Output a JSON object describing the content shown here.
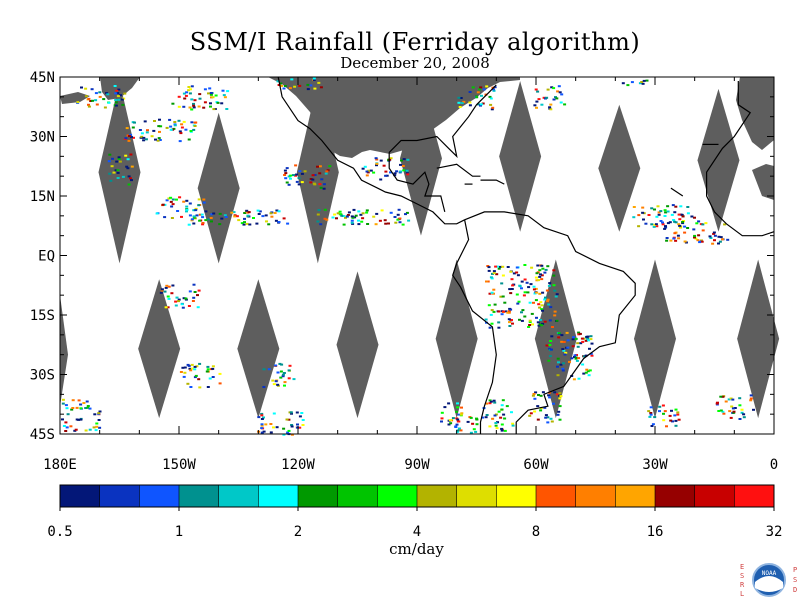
{
  "title": "SSM/I Rainfall (Ferriday algorithm)",
  "date": "December 20, 2008",
  "lat_labels": [
    "45N",
    "30N",
    "15N",
    "EQ",
    "15S",
    "30S",
    "45S"
  ],
  "lon_labels": [
    "180E",
    "150W",
    "120W",
    "90W",
    "60W",
    "30W",
    "0"
  ],
  "colorbar": {
    "colors": [
      "#031778",
      "#0a33c0",
      "#0f55ff",
      "#00918f",
      "#00c8c8",
      "#00ffff",
      "#009900",
      "#00c400",
      "#00ff00",
      "#b3b300",
      "#dede00",
      "#ffff00",
      "#ff5500",
      "#ff7f00",
      "#ffa500",
      "#960000",
      "#c80000",
      "#ff1010"
    ],
    "tick_labels": [
      "0.5",
      "1",
      "2",
      "4",
      "8",
      "16",
      "32"
    ],
    "units": "cm/day"
  },
  "colors": {
    "land": "#5e5e5e",
    "swath_gap": "#5e5e5e",
    "coast": "#000000"
  },
  "logo": {
    "left_letters": [
      "E",
      "S",
      "R",
      "L"
    ],
    "right_letters": [
      "P",
      "S",
      "D"
    ],
    "badge_text": "NOAA",
    "icon": "noaa-logo-icon"
  }
}
